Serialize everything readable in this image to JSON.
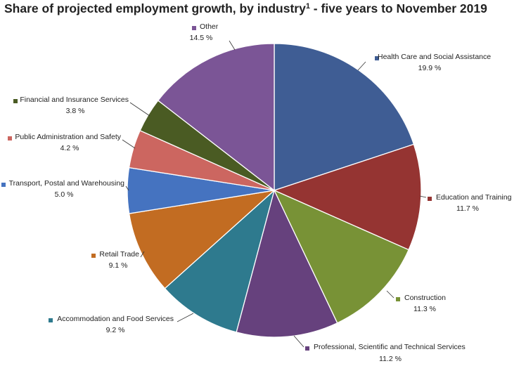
{
  "chart_data": {
    "type": "pie",
    "title": "Share of projected employment growth, by industry",
    "title_superscript": "1",
    "title_suffix": " - five years to November 2019",
    "unit": "%",
    "slices": [
      {
        "label": "Health Care and Social Assistance",
        "value": 19.9,
        "display": "19.9 %",
        "color": "#3F5D94"
      },
      {
        "label": "Education and Training",
        "value": 11.7,
        "display": "11.7 %",
        "color": "#953432"
      },
      {
        "label": "Construction",
        "value": 11.3,
        "display": "11.3 %",
        "color": "#789236"
      },
      {
        "label": "Professional, Scientific and Technical Services",
        "value": 11.2,
        "display": "11.2 %",
        "color": "#66417D"
      },
      {
        "label": "Accommodation and Food Services",
        "value": 9.2,
        "display": "9.2 %",
        "color": "#2E7A8E"
      },
      {
        "label": "Retail Trade",
        "value": 9.1,
        "display": "9.1 %",
        "color": "#C26C22"
      },
      {
        "label": "Transport, Postal and Warehousing",
        "value": 5.0,
        "display": "5.0 %",
        "color": "#4573C0"
      },
      {
        "label": "Public Administration and Safety",
        "value": 4.2,
        "display": "4.2 %",
        "color": "#CC6660"
      },
      {
        "label": "Financial and Insurance Services",
        "value": 3.8,
        "display": "3.8 %",
        "color": "#4A5B23"
      },
      {
        "label": "Other",
        "value": 14.5,
        "display": "14.5 %",
        "color": "#7B5596"
      }
    ]
  }
}
